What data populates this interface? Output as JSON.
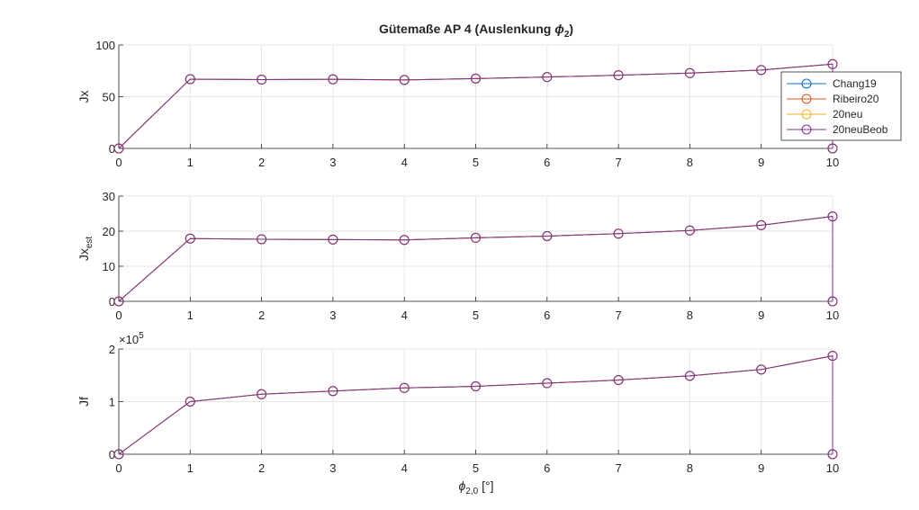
{
  "figure": {
    "title_main": "Gütemaße AP 4 (Auslenkung ",
    "title_symbol": "ϕ",
    "title_sub": "2",
    "title_end": ")",
    "xlabel_symbol": "ϕ",
    "xlabel_sub": "2,0",
    "xlabel_unit": " [°]"
  },
  "legend": {
    "location": "northeast (top subplot)",
    "entries": [
      "Chang19",
      "Ribeiro20",
      "20neu",
      "20neuBeob"
    ]
  },
  "colors": {
    "Chang19": "#0072BD",
    "Ribeiro20": "#D95319",
    "20neu": "#EDB120",
    "20neuBeob": "#7E2F8E",
    "grid": "#e6e6e6",
    "axis": "#262626"
  },
  "chart_data": [
    {
      "type": "line",
      "ylabel_main": "Jx",
      "ylabel_sub": "",
      "exponent": "",
      "xlim": [
        0,
        10
      ],
      "ylim": [
        0,
        100
      ],
      "yticks": [
        "0",
        "50",
        "100"
      ],
      "xticks": [
        "0",
        "1",
        "2",
        "3",
        "4",
        "5",
        "6",
        "7",
        "8",
        "9",
        "10"
      ],
      "grid": true,
      "x": [
        0,
        1,
        2,
        3,
        4,
        5,
        6,
        7,
        8,
        9,
        10,
        10
      ],
      "series": [
        {
          "name": "Chang19",
          "values": [
            0,
            67,
            66.5,
            66.8,
            66.2,
            67.5,
            69,
            70.8,
            72.8,
            75.8,
            81.5,
            0
          ]
        },
        {
          "name": "Ribeiro20",
          "values": [
            0,
            67,
            66.5,
            66.8,
            66.2,
            67.5,
            69,
            70.8,
            72.8,
            75.8,
            81.5,
            0
          ]
        },
        {
          "name": "20neu",
          "values": [
            0,
            67,
            66.5,
            66.8,
            66.2,
            67.5,
            69,
            70.8,
            72.8,
            75.8,
            81.5,
            0
          ]
        },
        {
          "name": "20neuBeob",
          "values": [
            0,
            67,
            66.5,
            66.8,
            66.2,
            67.5,
            69,
            70.8,
            72.8,
            75.8,
            81.5,
            0
          ]
        }
      ]
    },
    {
      "type": "line",
      "ylabel_main": "Jx",
      "ylabel_sub": "est",
      "exponent": "",
      "xlim": [
        0,
        10
      ],
      "ylim": [
        0,
        30
      ],
      "yticks": [
        "0",
        "10",
        "20",
        "30"
      ],
      "xticks": [
        "0",
        "1",
        "2",
        "3",
        "4",
        "5",
        "6",
        "7",
        "8",
        "9",
        "10"
      ],
      "grid": true,
      "x": [
        0,
        1,
        2,
        3,
        4,
        5,
        6,
        7,
        8,
        9,
        10,
        10
      ],
      "series": [
        {
          "name": "Chang19",
          "values": [
            0,
            17.9,
            17.7,
            17.6,
            17.5,
            18.1,
            18.6,
            19.3,
            20.2,
            21.7,
            24.2,
            0
          ]
        },
        {
          "name": "Ribeiro20",
          "values": [
            0,
            17.9,
            17.7,
            17.6,
            17.5,
            18.1,
            18.6,
            19.3,
            20.2,
            21.7,
            24.2,
            0
          ]
        },
        {
          "name": "20neu",
          "values": [
            0,
            17.9,
            17.7,
            17.6,
            17.5,
            18.1,
            18.6,
            19.3,
            20.2,
            21.7,
            24.2,
            0
          ]
        },
        {
          "name": "20neuBeob",
          "values": [
            0,
            17.9,
            17.7,
            17.6,
            17.5,
            18.1,
            18.6,
            19.3,
            20.2,
            21.7,
            24.2,
            0
          ]
        }
      ]
    },
    {
      "type": "line",
      "ylabel_main": "Jf",
      "ylabel_sub": "",
      "exponent": "5",
      "xlim": [
        0,
        10
      ],
      "ylim": [
        0,
        200000
      ],
      "yticks": [
        "0",
        "1",
        "2"
      ],
      "xticks": [
        "0",
        "1",
        "2",
        "3",
        "4",
        "5",
        "6",
        "7",
        "8",
        "9",
        "10"
      ],
      "grid": true,
      "x": [
        0,
        1,
        2,
        3,
        4,
        5,
        6,
        7,
        8,
        9,
        10,
        10
      ],
      "series": [
        {
          "name": "Chang19",
          "values": [
            0,
            100000,
            114000,
            120000,
            126000,
            129000,
            135000,
            141000,
            149000,
            161000,
            187000,
            0
          ]
        },
        {
          "name": "Ribeiro20",
          "values": [
            0,
            100000,
            114000,
            120000,
            126000,
            129000,
            135000,
            141000,
            149000,
            161000,
            187000,
            0
          ]
        },
        {
          "name": "20neu",
          "values": [
            0,
            100000,
            114000,
            120000,
            126000,
            129000,
            135000,
            141000,
            149000,
            161000,
            187000,
            0
          ]
        },
        {
          "name": "20neuBeob",
          "values": [
            0,
            100000,
            114000,
            120000,
            126000,
            129000,
            135000,
            141000,
            149000,
            161000,
            187000,
            0
          ]
        }
      ]
    }
  ]
}
